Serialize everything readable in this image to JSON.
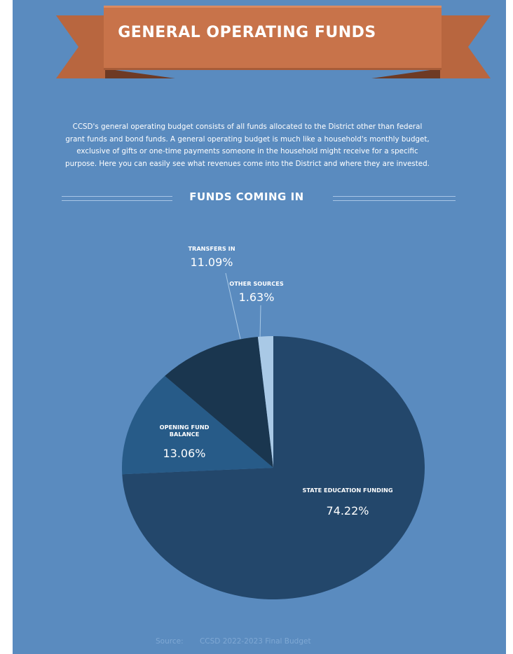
{
  "header": {
    "title": "GENERAL OPERATING FUNDS"
  },
  "intro": {
    "lines": [
      "CCSD's general operating budget consists of all funds allocated to the District other than federal",
      "grant funds and bond funds. A general operating budget is much like a household's monthly budget,",
      "exclusive of gifts or one-time payments someone in the household might receive for a specific",
      "purpose. Here you can easily see what revenues come into the District and where they are invested."
    ]
  },
  "chart_data": {
    "type": "pie",
    "title": "FUNDS COMING IN",
    "slices": [
      {
        "label": "STATE EDUCATION FUNDING",
        "value": 74.22,
        "display": "74.22%",
        "color": "#23476b"
      },
      {
        "label": "OPENING FUND BALANCE",
        "value": 13.06,
        "display": "13.06%",
        "color": "#275b88"
      },
      {
        "label": "TRANSFERS IN",
        "value": 11.09,
        "display": "11.09%",
        "color": "#1a364f"
      },
      {
        "label": "OTHER SOURCES",
        "value": 1.63,
        "display": "1.63%",
        "color": "#a9c9e6"
      }
    ]
  },
  "footer": {
    "source_label": "Source:",
    "source_value": "CCSD 2022-2023 Final Budget"
  },
  "colors": {
    "background": "#5a8bbf",
    "ribbon": "#c8734a",
    "ribbon_dark": "#8a4a2d"
  }
}
